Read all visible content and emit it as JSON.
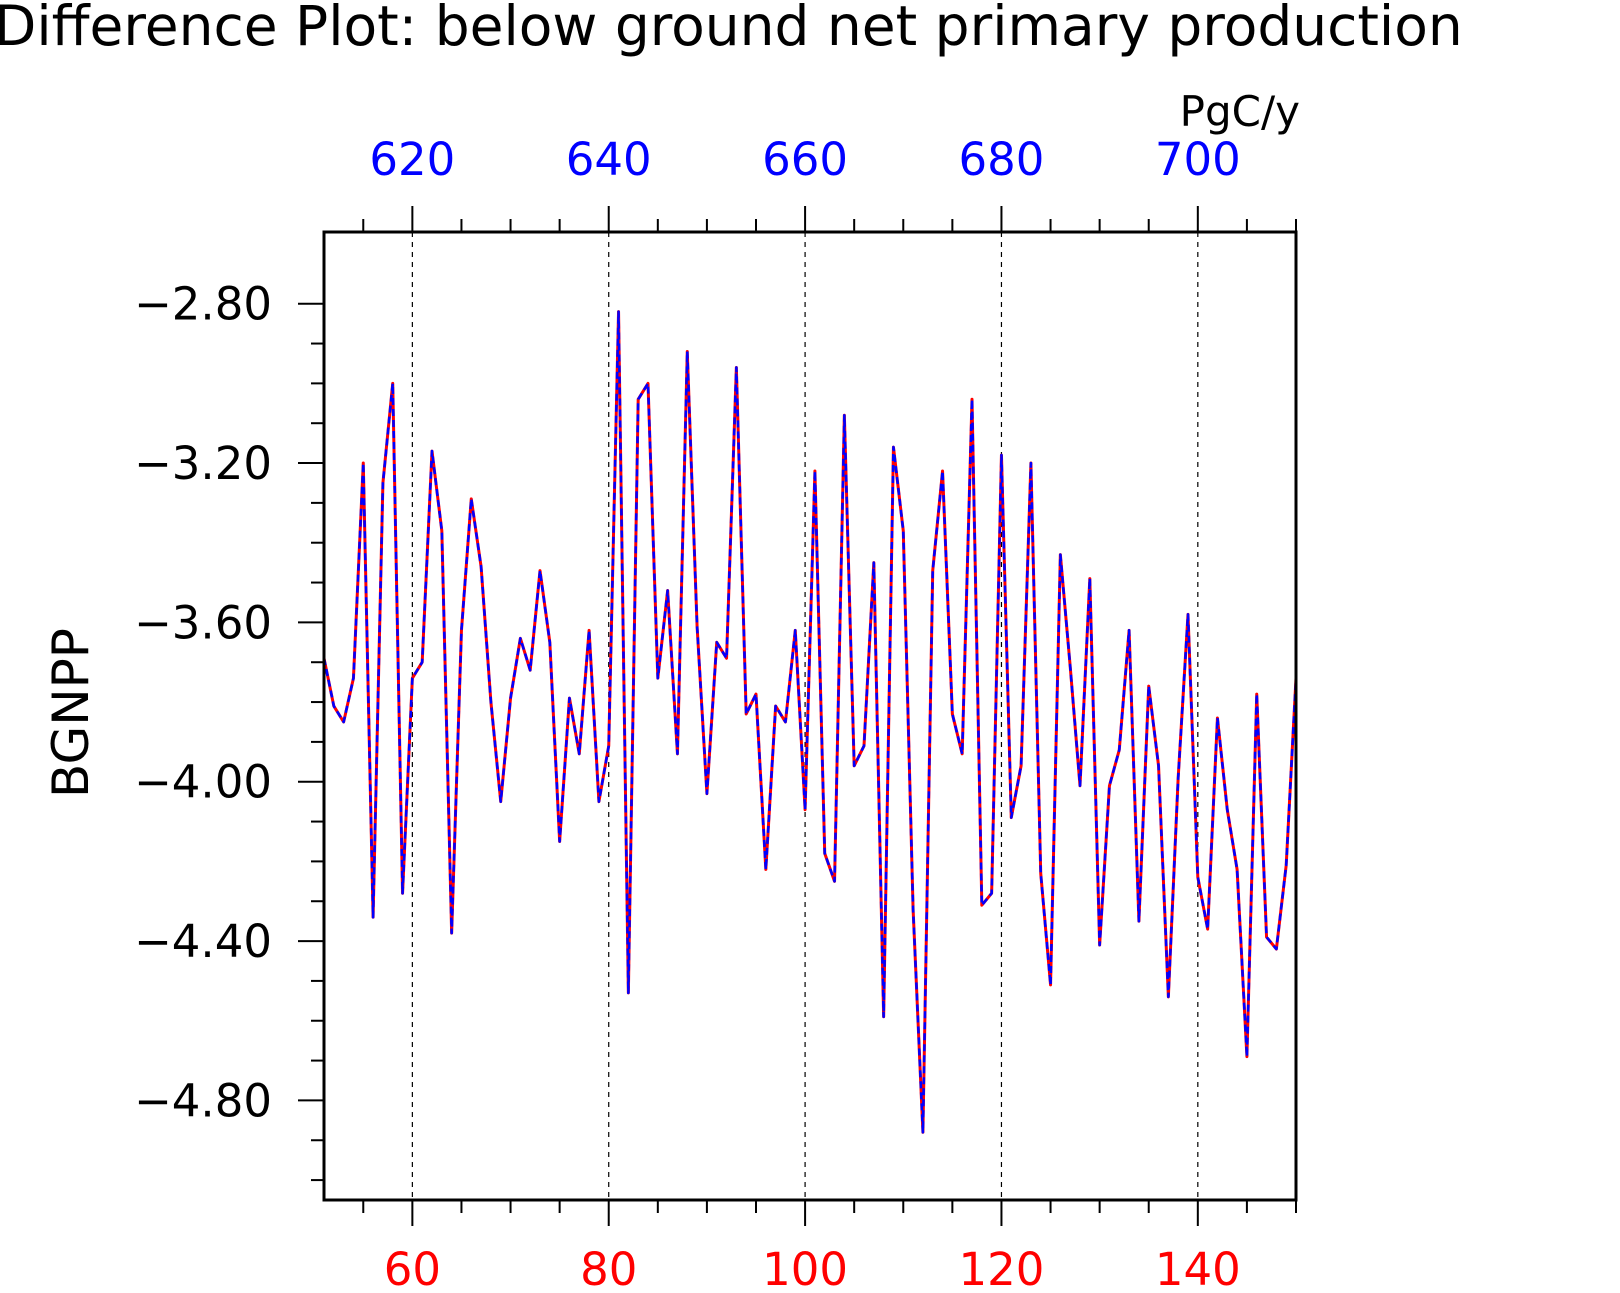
{
  "chart_data": {
    "type": "line",
    "title": "Difference Plot: below ground net primary production",
    "ylabel": "BGNPP",
    "units_label": "PgC/y",
    "grid": "vertical dashed",
    "xlim": [
      51,
      150
    ],
    "ylim": [
      -5.05,
      -2.62
    ],
    "bottom_axis": {
      "color": "#ff0000",
      "ticks": [
        60,
        80,
        100,
        120,
        140
      ],
      "tick_labels": [
        "60",
        "80",
        "100",
        "120",
        "140"
      ]
    },
    "top_axis": {
      "color": "#0000ff",
      "offset": 560,
      "ticks": [
        620,
        640,
        660,
        680,
        700
      ],
      "tick_labels": [
        "620",
        "640",
        "660",
        "680",
        "700"
      ]
    },
    "y_ticks": [
      -2.8,
      -3.2,
      -3.6,
      -4.0,
      -4.4,
      -4.8
    ],
    "y_tick_labels": [
      "−2.80",
      "−3.20",
      "−3.60",
      "−4.00",
      "−4.40",
      "−4.80"
    ],
    "x": [
      51,
      52,
      53,
      54,
      55,
      56,
      57,
      58,
      59,
      60,
      61,
      62,
      63,
      64,
      65,
      66,
      67,
      68,
      69,
      70,
      71,
      72,
      73,
      74,
      75,
      76,
      77,
      78,
      79,
      80,
      81,
      82,
      83,
      84,
      85,
      86,
      87,
      88,
      89,
      90,
      91,
      92,
      93,
      94,
      95,
      96,
      97,
      98,
      99,
      100,
      101,
      102,
      103,
      104,
      105,
      106,
      107,
      108,
      109,
      110,
      111,
      112,
      113,
      114,
      115,
      116,
      117,
      118,
      119,
      120,
      121,
      122,
      123,
      124,
      125,
      126,
      127,
      128,
      129,
      130,
      131,
      132,
      133,
      134,
      135,
      136,
      137,
      138,
      139,
      140,
      141,
      142,
      143,
      144,
      145,
      146,
      147,
      148,
      149,
      150
    ],
    "series": [
      {
        "color": "#ff0000",
        "style": "solid",
        "values": [
          -3.69,
          -3.81,
          -3.85,
          -3.74,
          -3.2,
          -4.34,
          -3.25,
          -3.0,
          -4.28,
          -3.74,
          -3.7,
          -3.17,
          -3.37,
          -4.38,
          -3.62,
          -3.29,
          -3.46,
          -3.8,
          -4.05,
          -3.79,
          -3.64,
          -3.72,
          -3.47,
          -3.65,
          -4.15,
          -3.79,
          -3.93,
          -3.62,
          -4.05,
          -3.91,
          -2.82,
          -4.53,
          -3.04,
          -3.0,
          -3.74,
          -3.52,
          -3.93,
          -2.92,
          -3.61,
          -4.03,
          -3.65,
          -3.69,
          -2.96,
          -3.83,
          -3.78,
          -4.22,
          -3.81,
          -3.85,
          -3.62,
          -4.07,
          -3.22,
          -4.18,
          -4.25,
          -3.08,
          -3.96,
          -3.91,
          -3.45,
          -4.59,
          -3.16,
          -3.37,
          -4.32,
          -4.88,
          -3.47,
          -3.22,
          -3.83,
          -3.93,
          -3.04,
          -4.31,
          -4.28,
          -3.18,
          -4.09,
          -3.96,
          -3.2,
          -4.23,
          -4.51,
          -3.43,
          -3.71,
          -4.01,
          -3.49,
          -4.41,
          -4.01,
          -3.92,
          -3.62,
          -4.35,
          -3.76,
          -3.96,
          -4.54,
          -3.99,
          -3.58,
          -4.24,
          -4.37,
          -3.84,
          -4.07,
          -4.22,
          -4.69,
          -3.78,
          -4.39,
          -4.42,
          -4.21,
          -3.74
        ]
      },
      {
        "color": "#0000ff",
        "style": "dashed",
        "values": [
          -3.69,
          -3.81,
          -3.85,
          -3.74,
          -3.2,
          -4.34,
          -3.25,
          -3.0,
          -4.28,
          -3.74,
          -3.7,
          -3.17,
          -3.37,
          -4.38,
          -3.62,
          -3.29,
          -3.46,
          -3.8,
          -4.05,
          -3.79,
          -3.64,
          -3.72,
          -3.47,
          -3.65,
          -4.15,
          -3.79,
          -3.93,
          -3.62,
          -4.05,
          -3.91,
          -2.82,
          -4.53,
          -3.04,
          -3.0,
          -3.74,
          -3.52,
          -3.93,
          -2.92,
          -3.61,
          -4.03,
          -3.65,
          -3.69,
          -2.96,
          -3.83,
          -3.78,
          -4.22,
          -3.81,
          -3.85,
          -3.62,
          -4.07,
          -3.22,
          -4.18,
          -4.25,
          -3.08,
          -3.96,
          -3.91,
          -3.45,
          -4.59,
          -3.16,
          -3.37,
          -4.32,
          -4.88,
          -3.47,
          -3.22,
          -3.83,
          -3.93,
          -3.04,
          -4.31,
          -4.28,
          -3.18,
          -4.09,
          -3.96,
          -3.2,
          -4.23,
          -4.51,
          -3.43,
          -3.71,
          -4.01,
          -3.49,
          -4.41,
          -4.01,
          -3.92,
          -3.62,
          -4.35,
          -3.76,
          -3.96,
          -4.54,
          -3.99,
          -3.58,
          -4.24,
          -4.37,
          -3.84,
          -4.07,
          -4.22,
          -4.69,
          -3.78,
          -4.39,
          -4.42,
          -4.21,
          -3.74
        ]
      }
    ]
  }
}
